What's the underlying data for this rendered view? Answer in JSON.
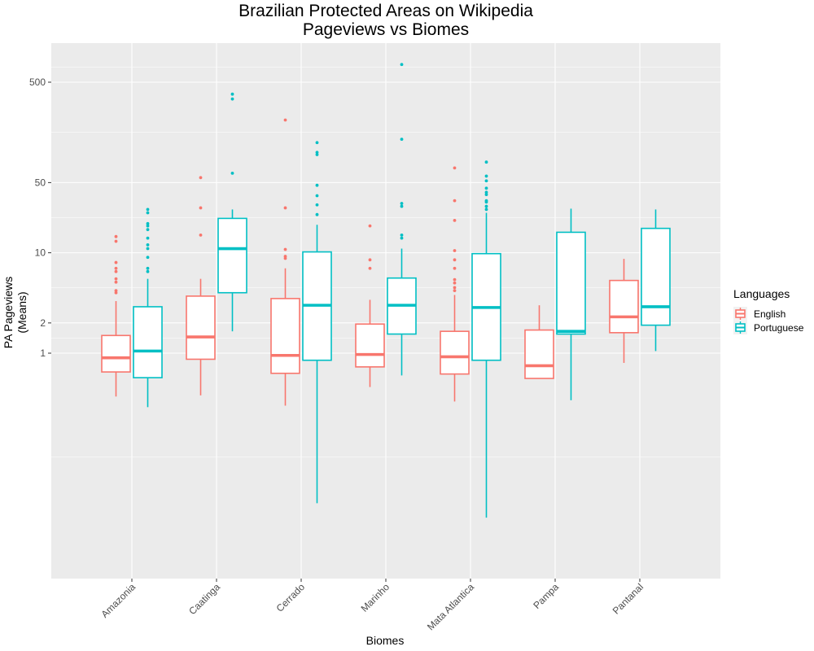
{
  "chart_data": {
    "type": "boxplot",
    "title_line1": "Brazilian Protected Areas on Wikipedia",
    "title_line2": "Pageviews vs Biomes",
    "xlabel": "Biomes",
    "ylabel_line1": "PA Pageviews",
    "ylabel_line2": "(Means)",
    "y_scale": "log10",
    "ylim": [
      0.0085,
      1000
    ],
    "y_ticks": [
      1,
      2,
      10,
      50,
      500
    ],
    "y_tick_labels": [
      "1",
      "2",
      "10",
      "50",
      "500"
    ],
    "grid": true,
    "legend_position": "right",
    "legend": {
      "title": "Languages",
      "items": [
        {
          "name": "English",
          "color": "#F8766D"
        },
        {
          "name": "Portuguese",
          "color": "#00BFC4"
        }
      ]
    },
    "categories": [
      "Amazonia",
      "Caatinga",
      "Cerrado",
      "Marinho",
      "Mata Atlantica",
      "Pampa",
      "Pantanal"
    ],
    "series": [
      {
        "name": "English",
        "color": "#F8766D",
        "boxes": [
          {
            "whisker_low": 0.37,
            "q1": 0.65,
            "median": 0.9,
            "q3": 1.5,
            "whisker_high": 3.3,
            "outliers": [
              4.0,
              4.2,
              5.1,
              5.5,
              6.5,
              7.0,
              8.0,
              13.0,
              14.5
            ]
          },
          {
            "whisker_low": 0.38,
            "q1": 0.87,
            "median": 1.45,
            "q3": 3.7,
            "whisker_high": 5.5,
            "outliers": [
              15.0,
              28.0,
              56.0
            ]
          },
          {
            "whisker_low": 0.3,
            "q1": 0.63,
            "median": 0.95,
            "q3": 3.5,
            "whisker_high": 7.0,
            "outliers": [
              8.8,
              9.2,
              10.8,
              28.0,
              210.0
            ]
          },
          {
            "whisker_low": 0.46,
            "q1": 0.73,
            "median": 0.97,
            "q3": 1.95,
            "whisker_high": 3.4,
            "outliers": [
              7.0,
              8.5,
              18.5
            ]
          },
          {
            "whisker_low": 0.33,
            "q1": 0.62,
            "median": 0.92,
            "q3": 1.65,
            "whisker_high": 3.8,
            "outliers": [
              4.2,
              4.5,
              5.0,
              5.4,
              7.0,
              8.5,
              10.5,
              21.0,
              33.0,
              70.0
            ]
          },
          {
            "whisker_low": 0.56,
            "q1": 0.56,
            "median": 0.75,
            "q3": 1.7,
            "whisker_high": 3.0,
            "outliers": []
          },
          {
            "whisker_low": 0.8,
            "q1": 1.6,
            "median": 2.3,
            "q3": 5.3,
            "whisker_high": 8.7,
            "outliers": []
          }
        ]
      },
      {
        "name": "Portuguese",
        "color": "#00BFC4",
        "boxes": [
          {
            "whisker_low": 0.29,
            "q1": 0.57,
            "median": 1.05,
            "q3": 2.9,
            "whisker_high": 5.5,
            "outliers": [
              6.5,
              7.0,
              9.0,
              11.0,
              12.0,
              14.0,
              17.0,
              18.5,
              19.5,
              25.0,
              27.0
            ]
          },
          {
            "whisker_low": 1.65,
            "q1": 4.0,
            "median": 11.0,
            "q3": 22.0,
            "whisker_high": 27.0,
            "outliers": [
              62.0,
              340.0,
              380.0
            ]
          },
          {
            "whisker_low": 0.032,
            "q1": 0.85,
            "median": 3.0,
            "q3": 10.2,
            "whisker_high": 19.0,
            "outliers": [
              24.0,
              30.0,
              37.0,
              47.0,
              95.0,
              100.0,
              125.0
            ]
          },
          {
            "whisker_low": 0.6,
            "q1": 1.55,
            "median": 3.0,
            "q3": 5.6,
            "whisker_high": 11.0,
            "outliers": [
              14.0,
              15.0,
              29.0,
              31.0,
              135.0,
              750.0
            ]
          },
          {
            "whisker_low": 0.023,
            "q1": 0.85,
            "median": 2.85,
            "q3": 9.8,
            "whisker_high": 25.0,
            "outliers": [
              27.0,
              29.0,
              32.0,
              33.0,
              38.0,
              40.0,
              44.0,
              52.0,
              58.0,
              80.0
            ]
          },
          {
            "whisker_low": 0.34,
            "q1": 1.55,
            "median": 1.65,
            "q3": 16.0,
            "whisker_high": 27.5,
            "outliers": []
          },
          {
            "whisker_low": 1.05,
            "q1": 1.9,
            "median": 2.9,
            "q3": 17.5,
            "whisker_high": 27.0,
            "outliers": []
          }
        ]
      }
    ]
  }
}
